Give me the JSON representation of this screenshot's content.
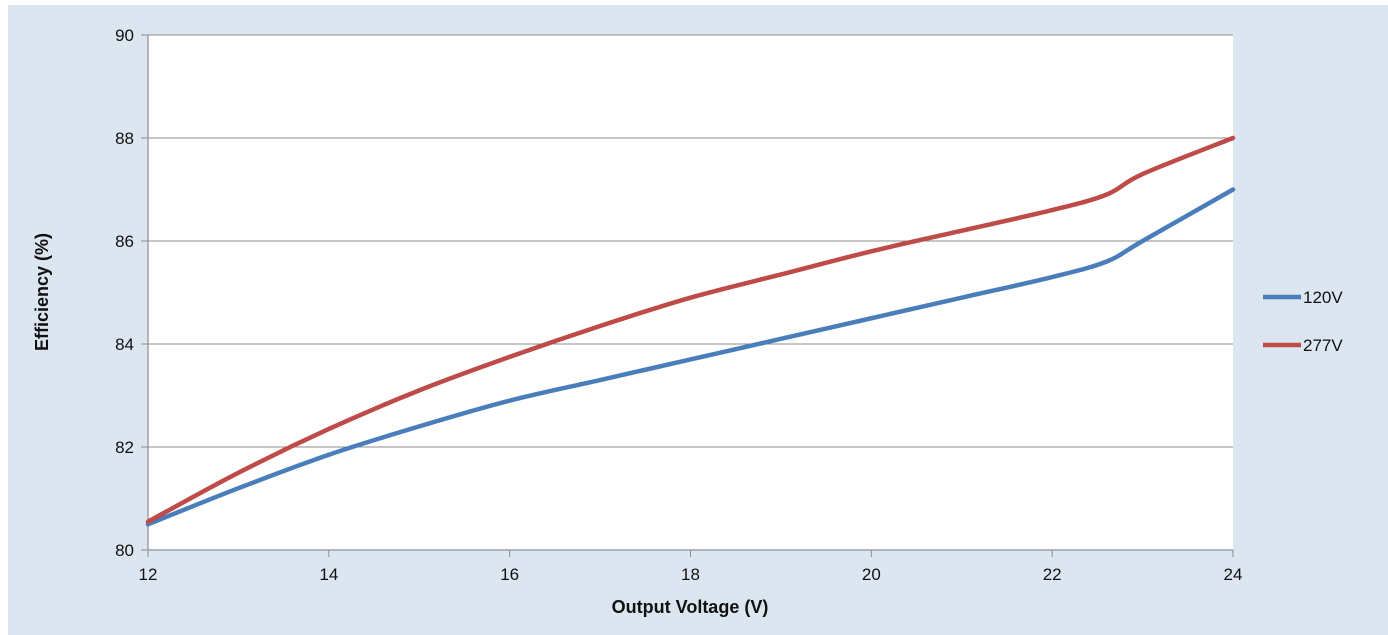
{
  "chart_data": {
    "type": "line",
    "title": "",
    "xlabel": "Output Voltage (V)",
    "ylabel": "Efficiency (%)",
    "xlim": [
      12,
      24
    ],
    "ylim": [
      80,
      90
    ],
    "xticks": [
      12,
      14,
      16,
      18,
      20,
      22,
      24
    ],
    "yticks": [
      80,
      82,
      84,
      86,
      88,
      90
    ],
    "grid": "horizontal",
    "legend_position": "right",
    "series": [
      {
        "name": "120V",
        "color": "#4a7ebb",
        "x": [
          12,
          13,
          14,
          15,
          16,
          17,
          18,
          19,
          20,
          21,
          22,
          22.6,
          23,
          24
        ],
        "y": [
          80.5,
          81.2,
          81.85,
          82.4,
          82.9,
          83.3,
          83.7,
          84.1,
          84.5,
          84.9,
          85.3,
          85.6,
          86.0,
          87.0
        ]
      },
      {
        "name": "277V",
        "color": "#be4b48",
        "x": [
          12,
          13,
          14,
          15,
          16,
          17,
          18,
          19,
          20,
          21,
          22,
          22.6,
          23,
          24
        ],
        "y": [
          80.55,
          81.5,
          82.35,
          83.1,
          83.75,
          84.35,
          84.9,
          85.35,
          85.8,
          86.2,
          86.6,
          86.9,
          87.3,
          88.0
        ]
      }
    ]
  }
}
